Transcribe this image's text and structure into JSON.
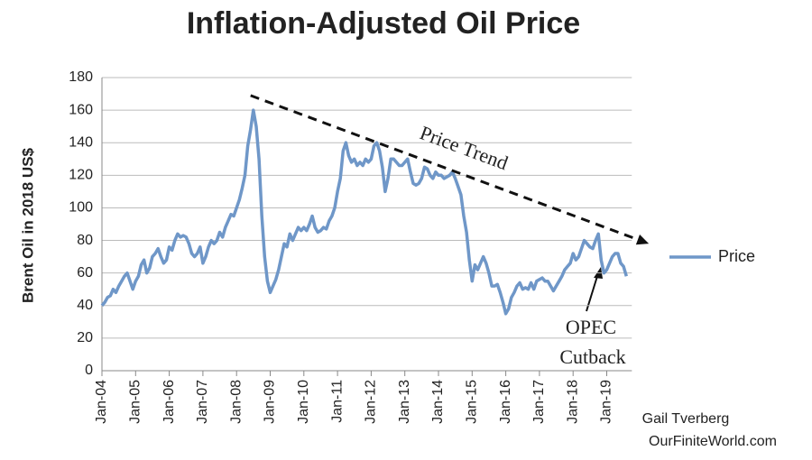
{
  "chart_data": {
    "type": "line",
    "title": "Inflation-Adjusted Oil Price",
    "y_label": "Brent Oil in  2018 US$",
    "categories": [
      "Jan-04",
      null,
      null,
      null,
      null,
      null,
      null,
      null,
      null,
      null,
      null,
      null,
      "Jan-05",
      null,
      null,
      null,
      null,
      null,
      null,
      null,
      null,
      null,
      null,
      null,
      "Jan-06",
      null,
      null,
      null,
      null,
      null,
      null,
      null,
      null,
      null,
      null,
      null,
      "Jan-07",
      null,
      null,
      null,
      null,
      null,
      null,
      null,
      null,
      null,
      null,
      null,
      "Jan-08",
      null,
      null,
      null,
      null,
      null,
      null,
      null,
      null,
      null,
      null,
      null,
      "Jan-09",
      null,
      null,
      null,
      null,
      null,
      null,
      null,
      null,
      null,
      null,
      null,
      "Jan-10",
      null,
      null,
      null,
      null,
      null,
      null,
      null,
      null,
      null,
      null,
      null,
      "Jan-11",
      null,
      null,
      null,
      null,
      null,
      null,
      null,
      null,
      null,
      null,
      null,
      "Jan-12",
      null,
      null,
      null,
      null,
      null,
      null,
      null,
      null,
      null,
      null,
      null,
      "Jan-13",
      null,
      null,
      null,
      null,
      null,
      null,
      null,
      null,
      null,
      null,
      null,
      "Jan-14",
      null,
      null,
      null,
      null,
      null,
      null,
      null,
      null,
      null,
      null,
      null,
      "Jan-15",
      null,
      null,
      null,
      null,
      null,
      null,
      null,
      null,
      null,
      null,
      null,
      "Jan-16",
      null,
      null,
      null,
      null,
      null,
      null,
      null,
      null,
      null,
      null,
      null,
      "Jan-17",
      null,
      null,
      null,
      null,
      null,
      null,
      null,
      null,
      null,
      null,
      null,
      "Jan-18",
      null,
      null,
      null,
      null,
      null,
      null,
      null,
      null,
      null,
      null,
      null,
      "Jan-19",
      null,
      null,
      null,
      null,
      null,
      null,
      null
    ],
    "series": [
      {
        "name": "Price",
        "color": "#6f97c8",
        "values": [
          40,
          42,
          45,
          46,
          50,
          48,
          52,
          55,
          58,
          60,
          55,
          50,
          55,
          58,
          65,
          68,
          60,
          63,
          70,
          72,
          75,
          70,
          66,
          68,
          76,
          74,
          80,
          84,
          82,
          83,
          82,
          78,
          72,
          70,
          72,
          76,
          66,
          70,
          76,
          80,
          78,
          80,
          85,
          82,
          88,
          92,
          96,
          95,
          100,
          105,
          112,
          120,
          138,
          148,
          160,
          150,
          130,
          95,
          70,
          55,
          48,
          52,
          56,
          62,
          70,
          78,
          76,
          84,
          80,
          84,
          88,
          86,
          88,
          86,
          90,
          95,
          88,
          85,
          86,
          88,
          87,
          92,
          95,
          100,
          110,
          118,
          135,
          140,
          132,
          128,
          130,
          126,
          128,
          126,
          130,
          128,
          130,
          138,
          140,
          135,
          125,
          110,
          118,
          130,
          130,
          128,
          126,
          126,
          128,
          130,
          122,
          115,
          114,
          115,
          118,
          125,
          124,
          120,
          118,
          122,
          120,
          120,
          118,
          119,
          120,
          122,
          118,
          113,
          108,
          95,
          85,
          68,
          55,
          65,
          62,
          66,
          70,
          66,
          60,
          52,
          52,
          53,
          48,
          42,
          35,
          38,
          45,
          48,
          52,
          54,
          50,
          51,
          50,
          54,
          50,
          55,
          56,
          57,
          55,
          55,
          52,
          49,
          52,
          55,
          58,
          62,
          64,
          66,
          72,
          68,
          70,
          75,
          80,
          78,
          76,
          75,
          80,
          84,
          68,
          60,
          62,
          66,
          70,
          72,
          72,
          66,
          64,
          58
        ]
      }
    ],
    "ylim": [
      0,
      180
    ],
    "yticks": [
      0,
      20,
      40,
      60,
      80,
      100,
      120,
      140,
      160,
      180
    ],
    "grid": true,
    "legend": "right",
    "trend": {
      "label": "Price Trend",
      "x": [
        53,
        195
      ],
      "values": [
        169,
        78
      ]
    },
    "annotation": [
      "OPEC",
      "Cutback"
    ],
    "source": [
      "Gail Tverberg",
      "OurFiniteWorld.com"
    ]
  }
}
